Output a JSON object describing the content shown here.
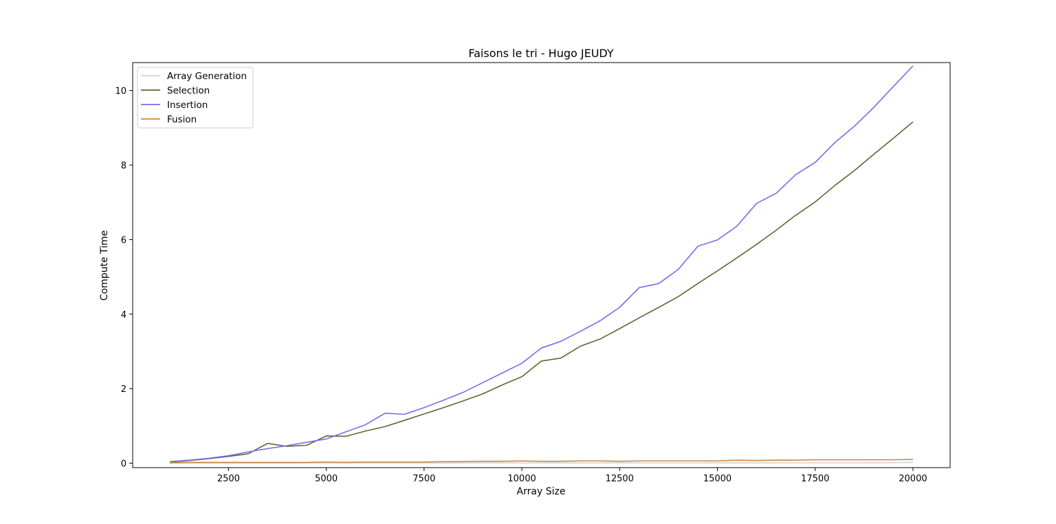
{
  "chart_data": {
    "type": "line",
    "title": "Faisons le tri - Hugo JEUDY",
    "xlabel": "Array Size",
    "ylabel": "Compute Time",
    "xlim": [
      50,
      20950
    ],
    "ylim": [
      -0.12,
      10.75
    ],
    "xticks": [
      2500,
      5000,
      7500,
      10000,
      12500,
      15000,
      17500,
      20000
    ],
    "yticks": [
      0,
      2,
      4,
      6,
      8,
      10
    ],
    "grid": false,
    "legend_position": "upper-left",
    "x": [
      1000,
      1500,
      2000,
      2500,
      3000,
      3500,
      4000,
      4500,
      5000,
      5500,
      6000,
      6500,
      7000,
      7500,
      8000,
      8500,
      9000,
      9500,
      10000,
      10500,
      11000,
      11500,
      12000,
      12500,
      13000,
      13500,
      14000,
      14500,
      15000,
      15500,
      16000,
      16500,
      17000,
      17500,
      18000,
      18500,
      19000,
      19500,
      20000
    ],
    "series": [
      {
        "name": "Array Generation",
        "color": "#d3d3d3",
        "values": [
          0.001,
          0.001,
          0.001,
          0.002,
          0.002,
          0.002,
          0.002,
          0.003,
          0.003,
          0.003,
          0.003,
          0.004,
          0.004,
          0.004,
          0.004,
          0.005,
          0.005,
          0.005,
          0.005,
          0.005,
          0.006,
          0.006,
          0.006,
          0.006,
          0.007,
          0.007,
          0.007,
          0.007,
          0.008,
          0.008,
          0.008,
          0.008,
          0.009,
          0.009,
          0.009,
          0.009,
          0.01,
          0.015,
          0.02
        ]
      },
      {
        "name": "Selection",
        "color": "#556b2f",
        "values": [
          0.03,
          0.07,
          0.12,
          0.18,
          0.25,
          0.53,
          0.45,
          0.48,
          0.73,
          0.72,
          0.86,
          0.98,
          1.15,
          1.32,
          1.49,
          1.67,
          1.86,
          2.1,
          2.32,
          2.74,
          2.82,
          3.14,
          3.33,
          3.61,
          3.9,
          4.18,
          4.47,
          4.82,
          5.16,
          5.51,
          5.87,
          6.25,
          6.65,
          7.01,
          7.45,
          7.85,
          8.29,
          8.72,
          9.16
        ]
      },
      {
        "name": "Insertion",
        "color": "#7b68ee",
        "values": [
          0.04,
          0.08,
          0.13,
          0.2,
          0.3,
          0.39,
          0.47,
          0.56,
          0.65,
          0.84,
          1.03,
          1.34,
          1.31,
          1.49,
          1.69,
          1.9,
          2.16,
          2.42,
          2.68,
          3.09,
          3.27,
          3.54,
          3.82,
          4.18,
          4.71,
          4.82,
          5.2,
          5.82,
          5.99,
          6.36,
          6.97,
          7.24,
          7.74,
          8.07,
          8.6,
          9.04,
          9.55,
          10.11,
          10.66
        ]
      },
      {
        "name": "Fusion",
        "color": "#cd853f",
        "values": [
          0.01,
          0.02,
          0.02,
          0.02,
          0.02,
          0.02,
          0.02,
          0.02,
          0.03,
          0.02,
          0.03,
          0.03,
          0.03,
          0.03,
          0.04,
          0.04,
          0.05,
          0.05,
          0.06,
          0.05,
          0.05,
          0.06,
          0.06,
          0.05,
          0.06,
          0.06,
          0.06,
          0.06,
          0.06,
          0.08,
          0.07,
          0.08,
          0.08,
          0.09,
          0.09,
          0.09,
          0.09,
          0.09,
          0.1
        ]
      }
    ]
  }
}
